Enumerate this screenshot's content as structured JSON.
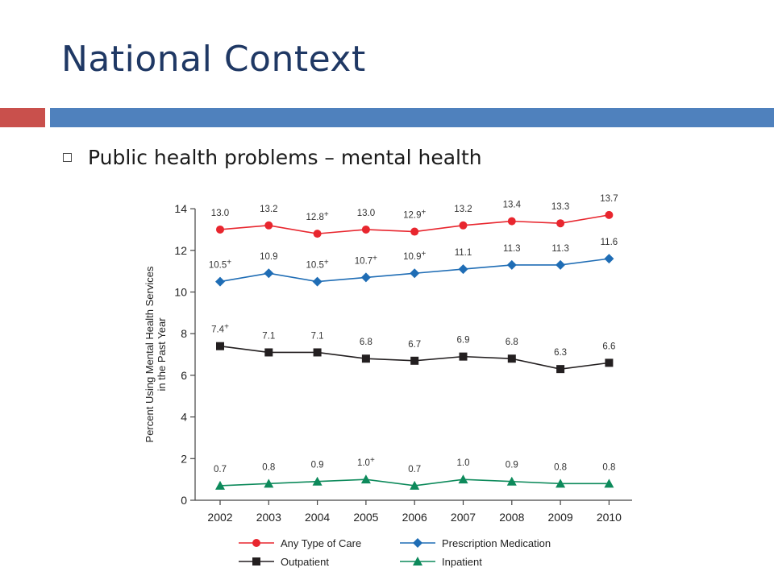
{
  "slide": {
    "title": "National Context",
    "bullet": "Public health problems – mental health"
  },
  "colors": {
    "title": "#1f3864",
    "accent_red": "#c9504c",
    "accent_blue": "#4f81bd"
  },
  "chart_data": {
    "type": "line",
    "title": "",
    "xlabel": "",
    "ylabel": "Percent Using Mental Health Services in the Past Year",
    "ylabel_lines": [
      "Percent Using Mental Health Services",
      "in the Past Year"
    ],
    "x": [
      "2002",
      "2003",
      "2004",
      "2005",
      "2006",
      "2007",
      "2008",
      "2009",
      "2010"
    ],
    "ylim": [
      0,
      14
    ],
    "yticks": [
      0,
      2,
      4,
      6,
      8,
      10,
      12,
      14
    ],
    "grid": false,
    "legend_position": "bottom",
    "series": [
      {
        "name": "Any Type of Care",
        "color": "#e8262e",
        "marker": "circle",
        "values": [
          13.0,
          13.2,
          12.8,
          13.0,
          12.9,
          13.2,
          13.4,
          13.3,
          13.7
        ],
        "labels": [
          "13.0",
          "13.2",
          "12.8+",
          "13.0",
          "12.9+",
          "13.2",
          "13.4",
          "13.3",
          "13.7"
        ]
      },
      {
        "name": "Prescription Medication",
        "color": "#1f6db5",
        "marker": "diamond",
        "values": [
          10.5,
          10.9,
          10.5,
          10.7,
          10.9,
          11.1,
          11.3,
          11.3,
          11.6
        ],
        "labels": [
          "10.5+",
          "10.9",
          "10.5+",
          "10.7+",
          "10.9+",
          "11.1",
          "11.3",
          "11.3",
          "11.6"
        ]
      },
      {
        "name": "Outpatient",
        "color": "#231f20",
        "marker": "square",
        "values": [
          7.4,
          7.1,
          7.1,
          6.8,
          6.7,
          6.9,
          6.8,
          6.3,
          6.6
        ],
        "labels": [
          "7.4+",
          "7.1",
          "7.1",
          "6.8",
          "6.7",
          "6.9",
          "6.8",
          "6.3",
          "6.6"
        ]
      },
      {
        "name": "Inpatient",
        "color": "#0d8a5b",
        "marker": "triangle",
        "values": [
          0.7,
          0.8,
          0.9,
          1.0,
          0.7,
          1.0,
          0.9,
          0.8,
          0.8
        ],
        "labels": [
          "0.7",
          "0.8",
          "0.9",
          "1.0+",
          "0.7",
          "1.0",
          "0.9",
          "0.8",
          "0.8"
        ]
      }
    ]
  }
}
